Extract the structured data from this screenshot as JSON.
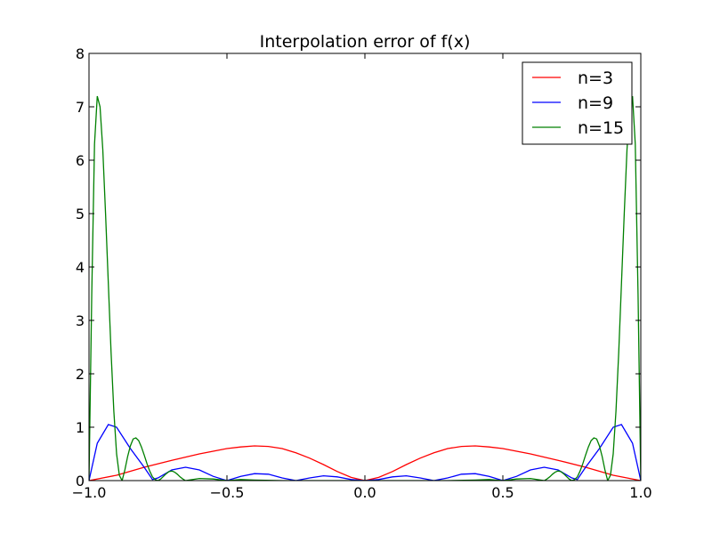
{
  "chart_data": {
    "type": "line",
    "title": "Interpolation error of f(x)",
    "xlabel": "",
    "ylabel": "",
    "xlim": [
      -1.0,
      1.0
    ],
    "ylim": [
      0,
      8
    ],
    "x_ticks": [
      -1.0,
      -0.5,
      0.0,
      0.5,
      1.0
    ],
    "x_tick_labels": [
      "−1.0",
      "−0.5",
      "0.0",
      "0.5",
      "1.0"
    ],
    "y_ticks": [
      0,
      1,
      2,
      3,
      4,
      5,
      6,
      7,
      8
    ],
    "y_tick_labels": [
      "0",
      "1",
      "2",
      "3",
      "4",
      "5",
      "6",
      "7",
      "8"
    ],
    "grid": false,
    "legend_position": "top-right",
    "series": [
      {
        "name": "n=3",
        "color": "#ff0000",
        "x": [
          -1.0,
          -0.9,
          -0.8,
          -0.7,
          -0.6,
          -0.5,
          -0.45,
          -0.4,
          -0.35,
          -0.3,
          -0.25,
          -0.2,
          -0.15,
          -0.1,
          -0.05,
          0.0,
          0.05,
          0.1,
          0.15,
          0.2,
          0.25,
          0.3,
          0.35,
          0.4,
          0.45,
          0.5,
          0.6,
          0.7,
          0.8,
          0.9,
          1.0
        ],
        "y": [
          0.0,
          0.1,
          0.25,
          0.38,
          0.5,
          0.6,
          0.63,
          0.65,
          0.64,
          0.6,
          0.52,
          0.42,
          0.3,
          0.17,
          0.06,
          0.0,
          0.06,
          0.17,
          0.3,
          0.42,
          0.52,
          0.6,
          0.64,
          0.65,
          0.63,
          0.6,
          0.5,
          0.38,
          0.25,
          0.1,
          0.0
        ]
      },
      {
        "name": "n=9",
        "color": "#0000ff",
        "x": [
          -1.0,
          -0.97,
          -0.93,
          -0.9,
          -0.85,
          -0.8,
          -0.77,
          -0.75,
          -0.7,
          -0.65,
          -0.6,
          -0.55,
          -0.5,
          -0.45,
          -0.4,
          -0.35,
          -0.3,
          -0.25,
          -0.2,
          -0.15,
          -0.1,
          -0.05,
          0.0,
          0.05,
          0.1,
          0.15,
          0.2,
          0.25,
          0.3,
          0.35,
          0.4,
          0.45,
          0.5,
          0.55,
          0.6,
          0.65,
          0.7,
          0.75,
          0.77,
          0.8,
          0.85,
          0.9,
          0.93,
          0.97,
          1.0
        ],
        "y": [
          0.0,
          0.7,
          1.05,
          1.0,
          0.6,
          0.25,
          0.02,
          0.05,
          0.2,
          0.25,
          0.2,
          0.08,
          0.0,
          0.08,
          0.13,
          0.12,
          0.05,
          0.0,
          0.05,
          0.09,
          0.07,
          0.02,
          0.0,
          0.02,
          0.07,
          0.09,
          0.05,
          0.0,
          0.05,
          0.12,
          0.13,
          0.08,
          0.0,
          0.08,
          0.2,
          0.25,
          0.2,
          0.05,
          0.02,
          0.25,
          0.6,
          1.0,
          1.05,
          0.7,
          0.0
        ]
      },
      {
        "name": "n=15",
        "color": "#008000",
        "x": [
          -1.0,
          -0.99,
          -0.98,
          -0.97,
          -0.96,
          -0.95,
          -0.94,
          -0.93,
          -0.92,
          -0.91,
          -0.9,
          -0.89,
          -0.88,
          -0.87,
          -0.86,
          -0.85,
          -0.84,
          -0.83,
          -0.82,
          -0.81,
          -0.8,
          -0.79,
          -0.78,
          -0.77,
          -0.76,
          -0.75,
          -0.74,
          -0.73,
          -0.72,
          -0.71,
          -0.7,
          -0.69,
          -0.68,
          -0.67,
          -0.66,
          -0.65,
          -0.6,
          -0.55,
          -0.5,
          -0.45,
          -0.4,
          -0.3,
          -0.2,
          -0.1,
          0.0,
          0.1,
          0.2,
          0.3,
          0.4,
          0.45,
          0.5,
          0.55,
          0.6,
          0.65,
          0.66,
          0.67,
          0.68,
          0.69,
          0.7,
          0.71,
          0.72,
          0.73,
          0.74,
          0.75,
          0.76,
          0.77,
          0.78,
          0.79,
          0.8,
          0.81,
          0.82,
          0.83,
          0.84,
          0.85,
          0.86,
          0.87,
          0.88,
          0.89,
          0.9,
          0.91,
          0.92,
          0.93,
          0.94,
          0.95,
          0.96,
          0.97,
          0.98,
          0.99,
          1.0
        ],
        "y": [
          0.0,
          3.5,
          6.3,
          7.2,
          7.0,
          6.2,
          5.0,
          3.7,
          2.4,
          1.3,
          0.5,
          0.1,
          0.0,
          0.2,
          0.45,
          0.65,
          0.78,
          0.8,
          0.75,
          0.63,
          0.48,
          0.32,
          0.18,
          0.07,
          0.02,
          0.0,
          0.03,
          0.08,
          0.13,
          0.17,
          0.18,
          0.16,
          0.12,
          0.07,
          0.03,
          0.0,
          0.04,
          0.03,
          0.0,
          0.02,
          0.01,
          0.0,
          0.0,
          0.0,
          0.0,
          0.0,
          0.0,
          0.0,
          0.01,
          0.02,
          0.0,
          0.03,
          0.04,
          0.0,
          0.03,
          0.07,
          0.12,
          0.16,
          0.18,
          0.17,
          0.13,
          0.08,
          0.03,
          0.0,
          0.02,
          0.07,
          0.18,
          0.32,
          0.48,
          0.63,
          0.75,
          0.8,
          0.78,
          0.65,
          0.45,
          0.2,
          0.0,
          0.1,
          0.5,
          1.3,
          2.4,
          3.7,
          5.0,
          6.2,
          7.0,
          7.2,
          6.3,
          3.5,
          0.0
        ]
      }
    ]
  }
}
